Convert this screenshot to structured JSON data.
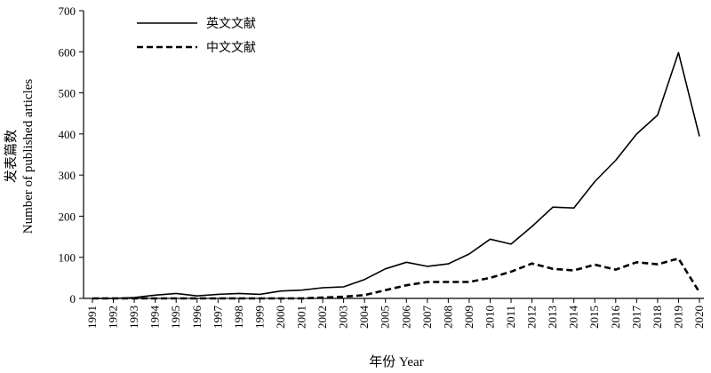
{
  "chart_data": {
    "type": "line",
    "xlabel": "年份 Year",
    "ylabel_cn": "发表篇数",
    "ylabel_en": "Number of published articles",
    "ylim": [
      0,
      700
    ],
    "yticks": [
      0,
      100,
      200,
      300,
      400,
      500,
      600,
      700
    ],
    "grid": false,
    "legend_position": "top-left",
    "x": [
      "1991",
      "1992",
      "1993",
      "1994",
      "1995",
      "1996",
      "1997",
      "1998",
      "1999",
      "2000",
      "2001",
      "2002",
      "2003",
      "2004",
      "2005",
      "2006",
      "2007",
      "2008",
      "2009",
      "2010",
      "2011",
      "2012",
      "2013",
      "2014",
      "2015",
      "2016",
      "2017",
      "2018",
      "2019",
      "2020"
    ],
    "series": [
      {
        "name": "英文文献",
        "style": "solid",
        "values": [
          0,
          0,
          2,
          8,
          12,
          6,
          10,
          12,
          10,
          18,
          20,
          26,
          28,
          46,
          72,
          88,
          78,
          84,
          108,
          144,
          132,
          175,
          222,
          220,
          284,
          336,
          400,
          446,
          598,
          394
        ]
      },
      {
        "name": "中文文献",
        "style": "dashed",
        "values": [
          0,
          0,
          0,
          0,
          0,
          0,
          0,
          0,
          0,
          0,
          0,
          2,
          4,
          8,
          20,
          32,
          40,
          40,
          40,
          50,
          65,
          85,
          72,
          68,
          82,
          70,
          88,
          83,
          97,
          15
        ]
      }
    ]
  }
}
